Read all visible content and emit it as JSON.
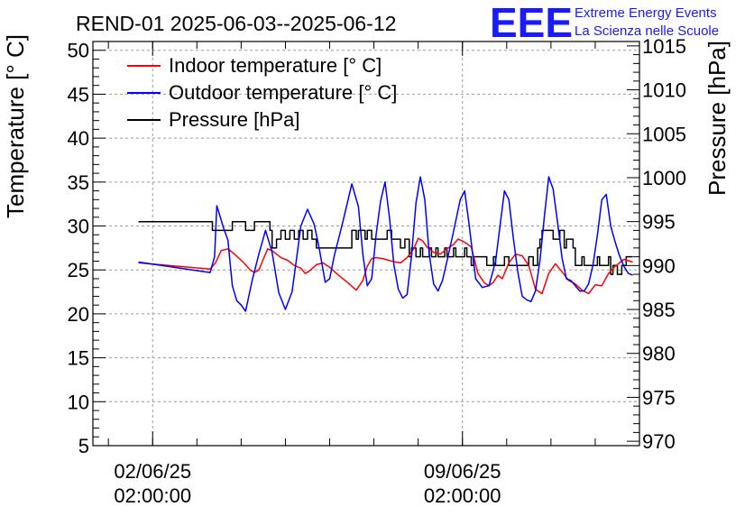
{
  "chart_data": {
    "type": "line",
    "title": "REND-01 2025-06-03--2025-06-12",
    "xlabel": "",
    "ylabel": "Temperature [° C]",
    "y2label": "Pressure [hPa]",
    "x_ticks": [
      {
        "day": 0,
        "label_date": "02/06/25",
        "label_time": "02:00:00"
      },
      {
        "day": 7,
        "label_date": "09/06/25",
        "label_time": "02:00:00"
      }
    ],
    "xlim_days": [
      -1.35,
      11.0
    ],
    "ylim": [
      5,
      51
    ],
    "y_ticks": [
      5,
      10,
      15,
      20,
      25,
      30,
      35,
      40,
      45,
      50
    ],
    "y2lim": [
      969.5,
      1015.5
    ],
    "y2_ticks": [
      970,
      975,
      980,
      985,
      990,
      995,
      1000,
      1005,
      1010,
      1015
    ],
    "grid": true,
    "legend_position": "top-left",
    "series": [
      {
        "name": "Indoor temperature [° C]",
        "axis": "left",
        "color": "#ff0000",
        "x": [
          -0.32,
          1.3,
          1.42,
          1.55,
          1.7,
          1.85,
          2.0,
          2.1,
          2.2,
          2.3,
          2.4,
          2.5,
          2.6,
          2.7,
          2.8,
          2.9,
          3.05,
          3.2,
          3.35,
          3.45,
          3.55,
          3.7,
          3.85,
          4.0,
          4.2,
          4.4,
          4.6,
          4.75,
          4.85,
          4.95,
          5.05,
          5.2,
          5.4,
          5.6,
          5.75,
          5.9,
          6.0,
          6.1,
          6.2,
          6.35,
          6.5,
          6.65,
          6.8,
          6.9,
          7.0,
          7.1,
          7.2,
          7.35,
          7.5,
          7.6,
          7.7,
          7.8,
          7.9,
          8.05,
          8.2,
          8.35,
          8.5,
          8.65,
          8.8,
          8.95,
          9.1,
          9.25,
          9.4,
          9.55,
          9.7,
          9.85,
          10.0,
          10.15,
          10.3,
          10.45,
          10.65,
          10.85
        ],
        "values": [
          25.8,
          25.1,
          25.8,
          27.2,
          27.4,
          26.8,
          26.1,
          25.6,
          25.0,
          24.7,
          25.0,
          26.2,
          27.4,
          27.2,
          26.8,
          26.4,
          26.1,
          25.5,
          25.2,
          24.6,
          24.9,
          25.6,
          25.8,
          25.3,
          24.4,
          23.6,
          22.7,
          23.8,
          25.4,
          26.3,
          26.4,
          26.3,
          26.0,
          25.8,
          26.4,
          27.4,
          28.6,
          28.3,
          27.6,
          27.0,
          26.8,
          27.4,
          27.9,
          28.5,
          28.3,
          28.0,
          27.6,
          24.6,
          23.5,
          23.2,
          23.6,
          24.4,
          24.0,
          25.8,
          26.8,
          26.6,
          25.5,
          22.8,
          22.3,
          24.6,
          25.7,
          24.8,
          23.8,
          23.4,
          22.7,
          22.3,
          23.3,
          23.2,
          24.6,
          25.4,
          26.2,
          25.9
        ]
      },
      {
        "name": "Outdoor temperature [° C]",
        "axis": "left",
        "color": "#0000ff",
        "x": [
          -0.32,
          1.3,
          1.4,
          1.45,
          1.5,
          1.6,
          1.7,
          1.8,
          1.9,
          2.0,
          2.1,
          2.25,
          2.4,
          2.55,
          2.7,
          2.85,
          3.0,
          3.15,
          3.25,
          3.35,
          3.5,
          3.65,
          3.75,
          3.9,
          4.0,
          4.1,
          4.3,
          4.5,
          4.65,
          4.75,
          4.85,
          4.95,
          5.05,
          5.15,
          5.25,
          5.35,
          5.45,
          5.55,
          5.65,
          5.75,
          5.85,
          5.95,
          6.05,
          6.15,
          6.25,
          6.35,
          6.45,
          6.55,
          6.65,
          6.8,
          6.95,
          7.05,
          7.15,
          7.3,
          7.45,
          7.6,
          7.75,
          7.85,
          7.95,
          8.05,
          8.15,
          8.25,
          8.35,
          8.45,
          8.55,
          8.65,
          8.75,
          8.85,
          8.95,
          9.05,
          9.15,
          9.25,
          9.35,
          9.45,
          9.55,
          9.65,
          9.75,
          9.85,
          9.95,
          10.05,
          10.15,
          10.25,
          10.35,
          10.45,
          10.55,
          10.65,
          10.75,
          10.85
        ],
        "values": [
          25.9,
          24.7,
          26.5,
          32.3,
          31.5,
          29.8,
          28.4,
          23.2,
          21.5,
          21.0,
          20.3,
          23.8,
          26.8,
          29.5,
          27.0,
          22.4,
          20.5,
          22.5,
          26.2,
          30.0,
          31.9,
          30.2,
          27.8,
          23.6,
          24.0,
          26.5,
          30.5,
          34.8,
          32.2,
          26.8,
          23.2,
          24.0,
          29.0,
          32.8,
          35.0,
          31.0,
          25.6,
          22.8,
          21.8,
          22.2,
          26.6,
          32.6,
          35.6,
          33.0,
          26.8,
          23.4,
          22.6,
          23.8,
          26.0,
          29.4,
          33.0,
          34.0,
          30.2,
          24.0,
          23.0,
          23.2,
          26.0,
          30.0,
          34.0,
          33.0,
          28.6,
          24.8,
          22.0,
          21.6,
          21.4,
          22.6,
          26.0,
          31.0,
          35.6,
          34.2,
          30.4,
          26.4,
          24.0,
          23.8,
          23.2,
          22.6,
          22.6,
          23.4,
          25.6,
          29.0,
          33.0,
          33.6,
          30.0,
          28.2,
          26.6,
          25.4,
          24.6,
          24.4
        ]
      },
      {
        "name": "Pressure [hPa]",
        "axis": "right",
        "color": "#000000",
        "x": [
          -0.32,
          1.3,
          1.35,
          1.75,
          1.8,
          2.05,
          2.1,
          2.3,
          2.55,
          2.65,
          2.7,
          2.8,
          2.9,
          3.0,
          3.1,
          3.2,
          3.3,
          3.4,
          3.5,
          3.6,
          3.7,
          4.5,
          4.6,
          4.65,
          4.8,
          4.85,
          4.95,
          5.3,
          5.4,
          5.55,
          5.6,
          5.7,
          5.8,
          5.85,
          5.95,
          6.05,
          6.1,
          6.25,
          6.3,
          6.4,
          6.45,
          6.6,
          6.65,
          6.8,
          6.85,
          7.05,
          7.1,
          7.2,
          7.25,
          7.5,
          7.55,
          7.7,
          7.75,
          7.85,
          7.95,
          8.05,
          8.2,
          8.35,
          8.5,
          8.6,
          8.7,
          8.75,
          8.8,
          9.0,
          9.05,
          9.2,
          9.3,
          9.35,
          9.5,
          9.55,
          9.7,
          9.75,
          9.85,
          10.05,
          10.1,
          10.3,
          10.35,
          10.4,
          10.5,
          10.6,
          10.7,
          10.85
        ],
        "values": [
          995,
          995,
          994,
          994,
          995,
          995,
          994,
          995,
          995,
          994,
          992,
          993,
          994,
          993,
          994,
          993,
          994,
          993,
          994,
          993,
          992,
          994,
          993,
          994,
          993,
          994,
          993,
          994,
          993,
          993,
          992,
          993,
          991,
          992,
          991,
          992,
          991,
          992,
          991,
          992,
          991,
          992,
          991,
          992,
          991,
          992,
          991,
          990,
          991,
          991,
          990,
          991,
          990,
          990,
          991,
          990,
          990,
          990,
          991,
          990,
          992,
          993,
          994,
          994,
          993,
          994,
          992,
          993,
          992,
          990,
          991,
          990,
          990,
          991,
          990,
          991,
          989,
          990,
          989,
          990,
          991,
          991
        ]
      }
    ]
  },
  "logo": {
    "mark": "EEE",
    "line1": "Extreme Energy Events",
    "line2": "La Scienza nelle Scuole"
  }
}
